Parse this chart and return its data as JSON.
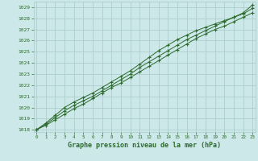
{
  "x": [
    0,
    1,
    2,
    3,
    4,
    5,
    6,
    7,
    8,
    9,
    10,
    11,
    12,
    13,
    14,
    15,
    16,
    17,
    18,
    19,
    20,
    21,
    22,
    23
  ],
  "line1": [
    1018.0,
    1018.4,
    1018.9,
    1019.4,
    1019.9,
    1020.3,
    1020.8,
    1021.3,
    1021.8,
    1022.2,
    1022.7,
    1023.2,
    1023.7,
    1024.2,
    1024.7,
    1025.2,
    1025.7,
    1026.2,
    1026.6,
    1027.0,
    1027.3,
    1027.7,
    1028.1,
    1028.5
  ],
  "line2": [
    1018.0,
    1018.6,
    1019.3,
    1020.0,
    1020.5,
    1020.9,
    1021.3,
    1021.8,
    1022.3,
    1022.8,
    1023.3,
    1023.9,
    1024.5,
    1025.1,
    1025.6,
    1026.1,
    1026.5,
    1026.9,
    1027.2,
    1027.5,
    1027.8,
    1028.1,
    1028.4,
    1028.9
  ],
  "line3": [
    1018.0,
    1018.5,
    1019.1,
    1019.7,
    1020.2,
    1020.6,
    1021.0,
    1021.5,
    1022.0,
    1022.5,
    1023.0,
    1023.6,
    1024.1,
    1024.6,
    1025.1,
    1025.6,
    1026.1,
    1026.5,
    1026.9,
    1027.3,
    1027.7,
    1028.1,
    1028.5,
    1029.2
  ],
  "line_color": "#2d6a2d",
  "bg_color": "#cce8e8",
  "grid_color": "#a8c8c8",
  "xlabel": "Graphe pression niveau de la mer (hPa)",
  "ylim": [
    1017.8,
    1029.5
  ],
  "xlim": [
    -0.3,
    23.3
  ],
  "yticks": [
    1018,
    1019,
    1020,
    1021,
    1022,
    1023,
    1024,
    1025,
    1026,
    1027,
    1028,
    1029
  ],
  "xticks": [
    0,
    1,
    2,
    3,
    4,
    5,
    6,
    7,
    8,
    9,
    10,
    11,
    12,
    13,
    14,
    15,
    16,
    17,
    18,
    19,
    20,
    21,
    22,
    23
  ]
}
